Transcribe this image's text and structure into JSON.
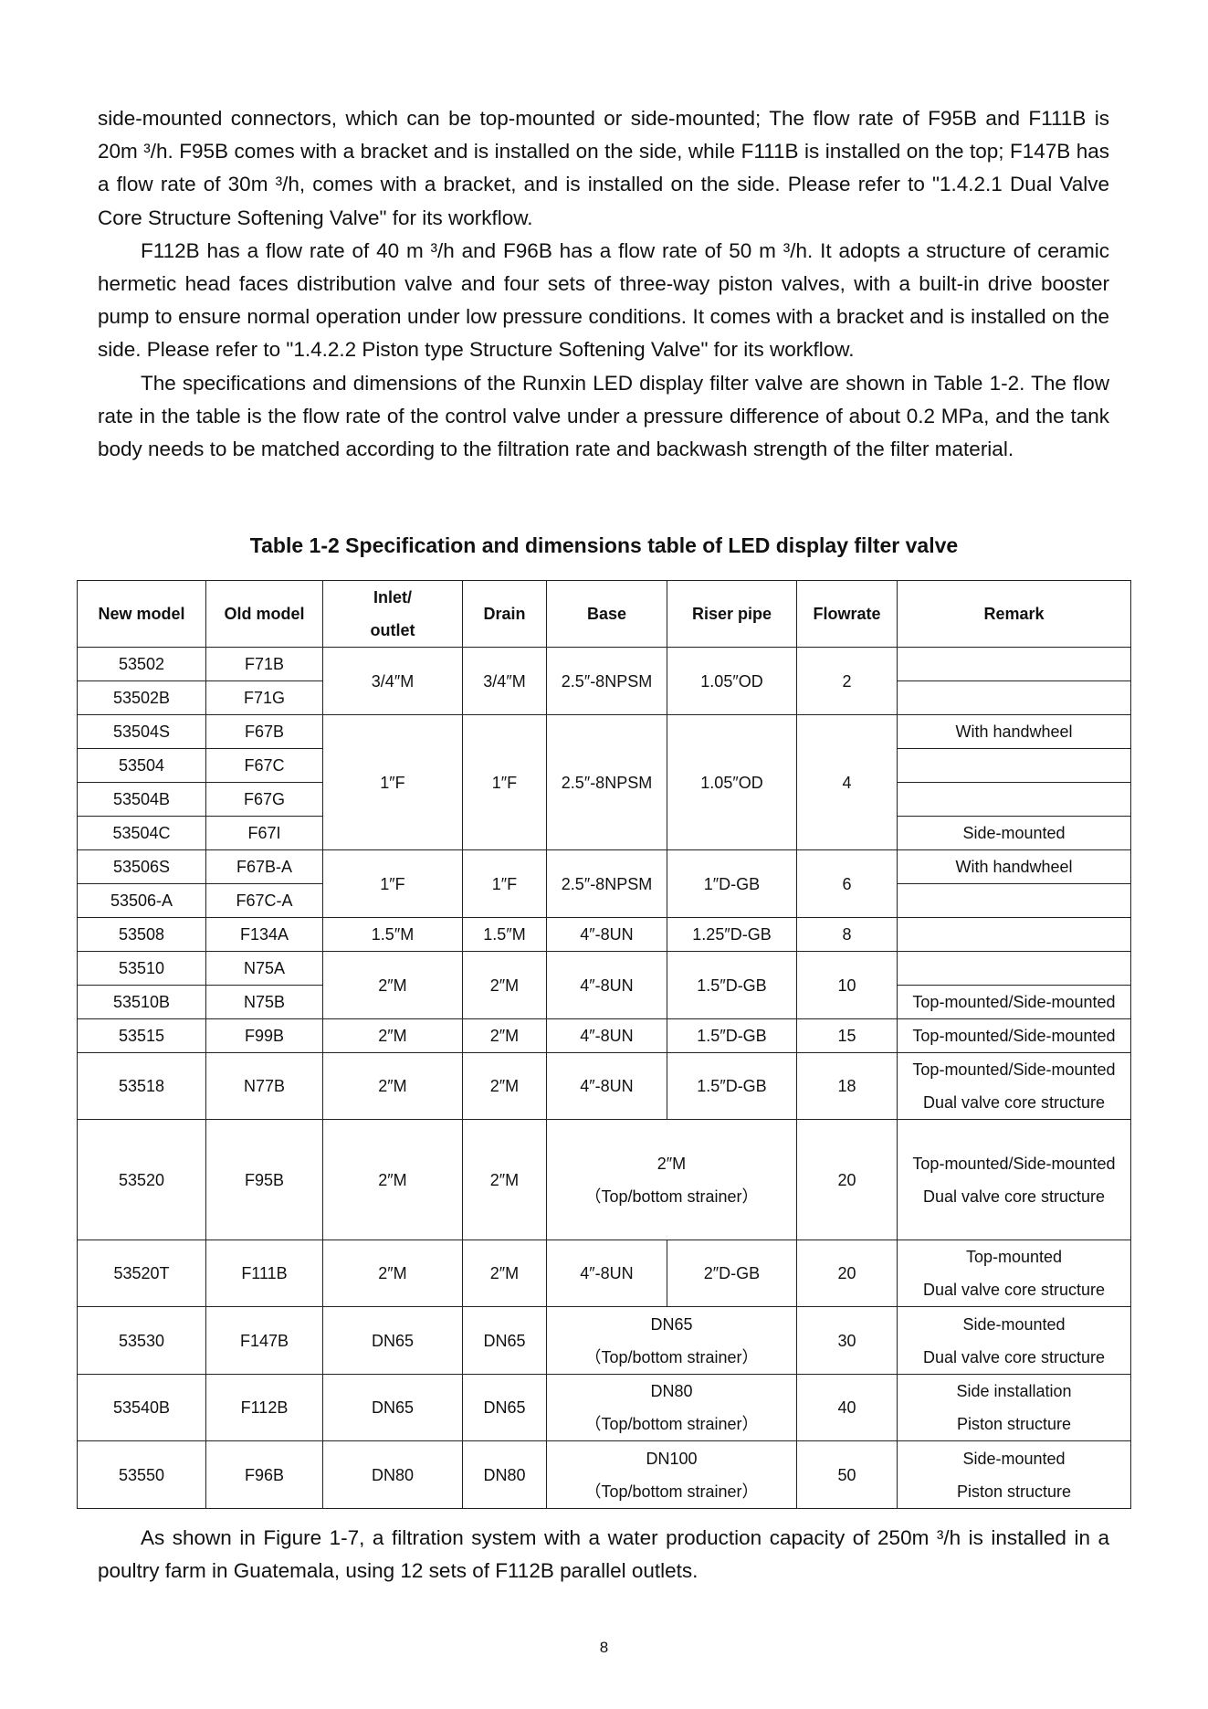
{
  "paragraphs": [
    "side-mounted connectors, which can be top-mounted or side-mounted; The flow rate of F95B and F111B is 20m ³/h. F95B comes with a bracket and is installed on the side, while F111B is installed on the top; F147B has a flow rate of 30m ³/h, comes with a bracket, and is installed on the side. Please refer to \"1.4.2.1 Dual Valve Core Structure Softening Valve\" for its workflow.",
    "F112B has a flow rate of 40 m ³/h and F96B has a flow rate of 50 m ³/h. It adopts a structure of ceramic hermetic head faces distribution valve and four sets of three-way piston valves, with a built-in drive booster pump to ensure normal operation under low pressure conditions. It comes with a bracket and is installed on the side. Please refer to \"1.4.2.2 Piston type Structure Softening Valve\" for its workflow.",
    "The specifications and dimensions of the Runxin LED display filter valve are shown in Table 1-2. The flow rate in the table is the flow rate of the control valve under a pressure difference of about 0.2 MPa, and the tank body needs to be matched according to the filtration rate and backwash strength of the filter material."
  ],
  "caption": "Table 1-2 Specification and dimensions table of LED display filter valve",
  "table": {
    "headers": [
      "New model",
      "Old model",
      "Inlet/",
      "outlet",
      "Drain",
      "Base",
      "Riser pipe",
      "Flowrate",
      "Remark"
    ],
    "new": [
      "53502",
      "53502B",
      "53504S",
      "53504",
      "53504B",
      "53504C",
      "53506S",
      "53506-A",
      "53508",
      "53510",
      "53510B",
      "53515",
      "53518",
      "53520",
      "53520T",
      "53530",
      "53540B",
      "53550"
    ],
    "old": [
      "F71B",
      "F71G",
      "F67B",
      "F67C",
      "F67G",
      "F67I",
      "F67B-A",
      "F67C-A",
      "F134A",
      "N75A",
      "N75B",
      "F99B",
      "N77B",
      "F95B",
      "F111B",
      "F147B",
      "F112B",
      "F96B"
    ],
    "inlet": [
      "3/4″M",
      "1″F",
      "1″F",
      "1.5″M",
      "2″M",
      "2″M",
      "2″M",
      "2″M",
      "2″M",
      "DN65",
      "DN65",
      "DN80"
    ],
    "drain": [
      "3/4″M",
      "1″F",
      "1″F",
      "1.5″M",
      "2″M",
      "2″M",
      "2″M",
      "2″M",
      "2″M",
      "DN65",
      "DN65",
      "DN80"
    ],
    "base": [
      "2.5″-8NPSM",
      "2.5″-8NPSM",
      "2.5″-8NPSM",
      "4″-8UN",
      "4″-8UN",
      "4″-8UN",
      "4″-8UN",
      "4″-8UN"
    ],
    "riser": [
      "1.05″OD",
      "1.05″OD",
      "1″D-GB",
      "1.25″D-GB",
      "1.5″D-GB",
      "1.5″D-GB",
      "1.5″D-GB",
      "2″D-GB"
    ],
    "merged": [
      [
        "2″M",
        "（Top/bottom strainer）"
      ],
      [
        "DN65",
        "（Top/bottom strainer）"
      ],
      [
        "DN80",
        "（Top/bottom strainer）"
      ],
      [
        "DN100",
        "（Top/bottom strainer）"
      ]
    ],
    "flow": [
      "2",
      "4",
      "6",
      "8",
      "10",
      "15",
      "18",
      "20",
      "20",
      "30",
      "40",
      "50"
    ],
    "remark": {
      "r53504S": "With handwheel",
      "r53504C": "Side-mounted",
      "r53506S": "With handwheel",
      "r53510B": "Top-mounted/Side-mounted",
      "r53515": "Top-mounted/Side-mounted",
      "r53518": [
        "Top-mounted/Side-mounted",
        "Dual valve core structure"
      ],
      "r53520": [
        "Top-mounted/Side-mounted",
        "Dual valve core structure"
      ],
      "r53520T": [
        "Top-mounted",
        "Dual valve core structure"
      ],
      "r53530": [
        "Side-mounted",
        "Dual valve core structure"
      ],
      "r53540B": [
        "Side installation",
        "Piston structure"
      ],
      "r53550": [
        "Side-mounted",
        "Piston structure"
      ]
    }
  },
  "after": "As shown in Figure 1-7, a filtration system with a water production capacity of 250m ³/h is installed in a poultry farm in Guatemala, using 12 sets of F112B parallel outlets.",
  "page_number": "8"
}
